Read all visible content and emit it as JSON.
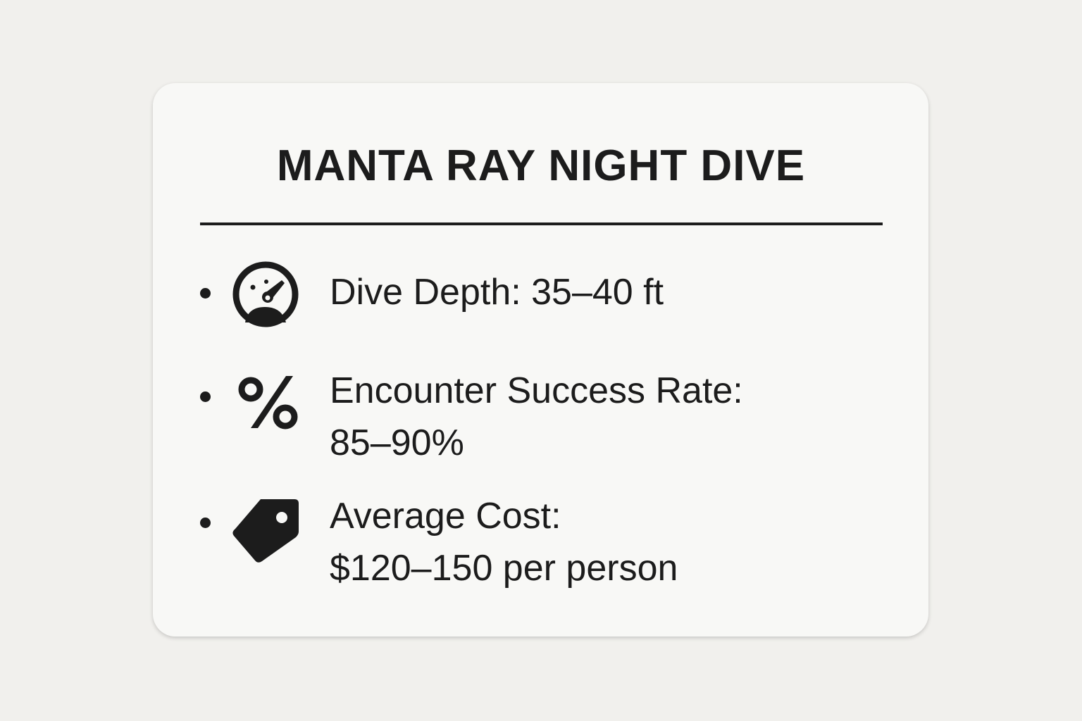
{
  "card": {
    "title": "MANTA RAY NIGHT DIVE",
    "items": [
      {
        "icon": "gauge-icon",
        "lines": [
          "Dive Depth: 35–40 ft"
        ]
      },
      {
        "icon": "percent-icon",
        "lines": [
          "Encounter Success Rate:",
          "85–90%"
        ]
      },
      {
        "icon": "price-tag-icon",
        "lines": [
          "Average Cost:",
          "$120–150 per person"
        ]
      }
    ]
  }
}
